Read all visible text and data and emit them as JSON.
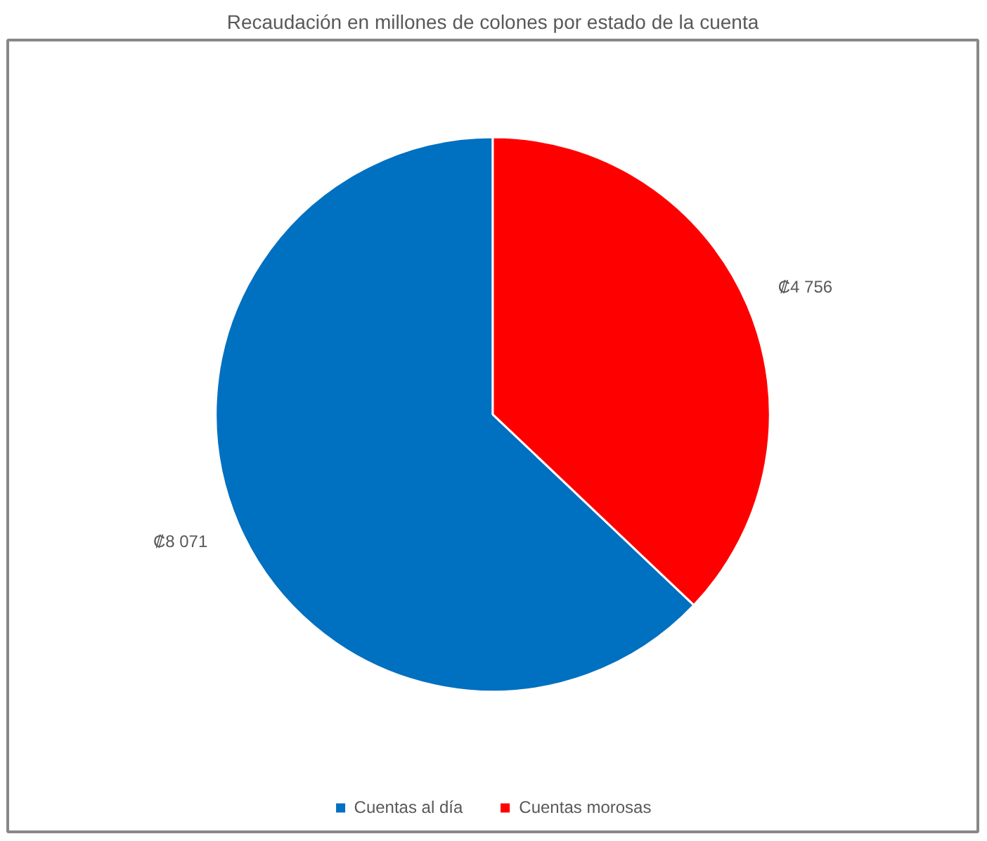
{
  "chart_data": {
    "type": "pie",
    "title": "Recaudación en millones de colones por estado de la cuenta",
    "categories": [
      "Cuentas al día",
      "Cuentas morosas"
    ],
    "values": [
      8071,
      4756
    ],
    "colors": [
      "#0070c0",
      "#ff0000"
    ],
    "value_labels": [
      "₡8 071",
      "₡4 756"
    ],
    "legend": "bottom"
  }
}
